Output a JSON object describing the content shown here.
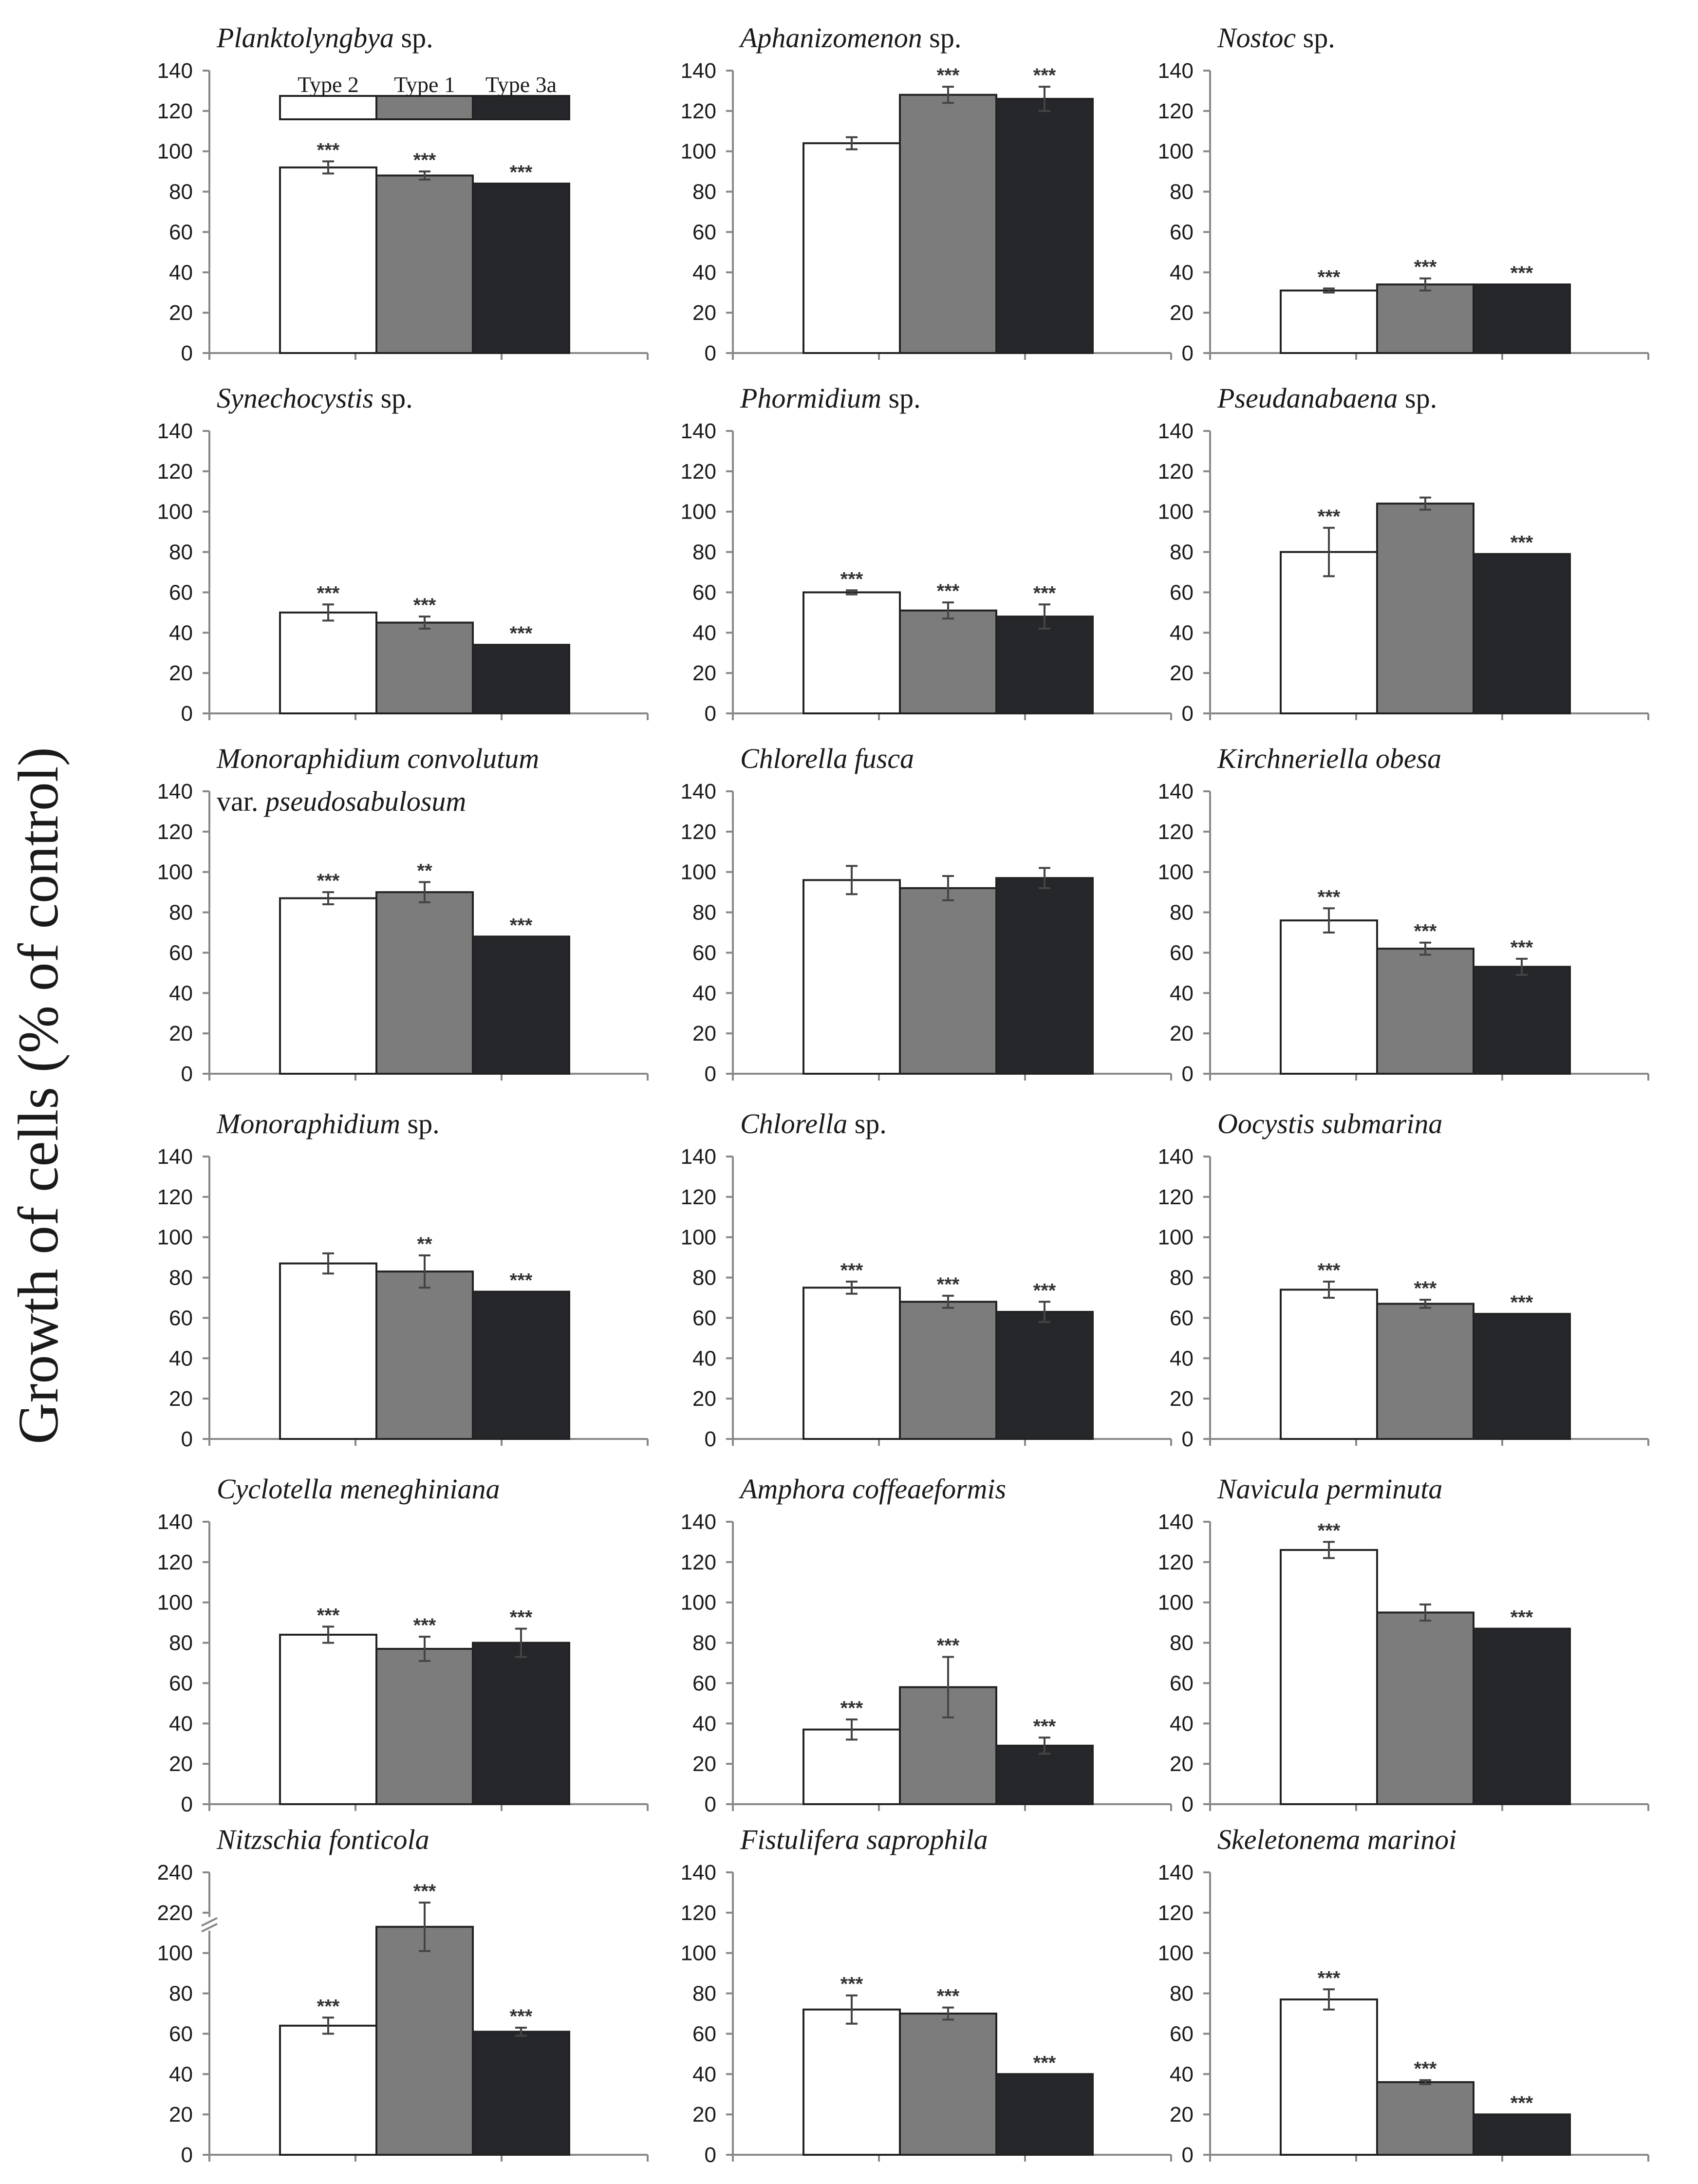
{
  "figure": {
    "ylabel": "Growth of cells (% of control)",
    "colors": {
      "Type 2": "#ffffff",
      "Type 1": "#7c7c7c",
      "Type 3a": "#26272b",
      "axis": "#888888",
      "text": "#1a1a1a"
    },
    "legend": [
      "Type 2",
      "Type 1",
      "Type 3a"
    ]
  },
  "chart_data": [
    {
      "type": "bar",
      "title": [
        {
          "text": "Planktolyngbya",
          "italic": true
        },
        {
          "text": " sp.",
          "italic": false
        }
      ],
      "title2": null,
      "categories": [
        "Type 2",
        "Type 1",
        "Type 3a"
      ],
      "values": [
        92,
        88,
        84
      ],
      "errors": [
        3,
        2,
        0
      ],
      "significance": [
        "***",
        "***",
        "***"
      ],
      "ylim": [
        0,
        140
      ],
      "yticks": [
        0,
        20,
        40,
        60,
        80,
        100,
        120,
        140
      ],
      "show_legend": true
    },
    {
      "type": "bar",
      "title": [
        {
          "text": "Aphanizomenon",
          "italic": true
        },
        {
          "text": " sp.",
          "italic": false
        }
      ],
      "title2": null,
      "categories": [
        "Type 2",
        "Type 1",
        "Type 3a"
      ],
      "values": [
        104,
        128,
        126
      ],
      "errors": [
        3,
        4,
        6
      ],
      "significance": [
        "",
        "***",
        "***"
      ],
      "ylim": [
        0,
        140
      ],
      "yticks": [
        0,
        20,
        40,
        60,
        80,
        100,
        120,
        140
      ]
    },
    {
      "type": "bar",
      "title": [
        {
          "text": "Nostoc",
          "italic": true
        },
        {
          "text": " sp.",
          "italic": false
        }
      ],
      "title2": null,
      "categories": [
        "Type 2",
        "Type 1",
        "Type 3a"
      ],
      "values": [
        31,
        34,
        34
      ],
      "errors": [
        1,
        3,
        0
      ],
      "significance": [
        "***",
        "***",
        "***"
      ],
      "ylim": [
        0,
        140
      ],
      "yticks": [
        0,
        20,
        40,
        60,
        80,
        100,
        120,
        140
      ]
    },
    {
      "type": "bar",
      "title": [
        {
          "text": "Synechocystis",
          "italic": true
        },
        {
          "text": " sp.",
          "italic": false
        }
      ],
      "title2": null,
      "categories": [
        "Type 2",
        "Type 1",
        "Type 3a"
      ],
      "values": [
        50,
        45,
        34
      ],
      "errors": [
        4,
        3,
        0
      ],
      "significance": [
        "***",
        "***",
        "***"
      ],
      "ylim": [
        0,
        140
      ],
      "yticks": [
        0,
        20,
        40,
        60,
        80,
        100,
        120,
        140
      ]
    },
    {
      "type": "bar",
      "title": [
        {
          "text": "Phormidium",
          "italic": true
        },
        {
          "text": " sp.",
          "italic": false
        }
      ],
      "title2": null,
      "categories": [
        "Type 2",
        "Type 1",
        "Type 3a"
      ],
      "values": [
        60,
        51,
        48
      ],
      "errors": [
        1,
        4,
        6
      ],
      "significance": [
        "***",
        "***",
        "***"
      ],
      "ylim": [
        0,
        140
      ],
      "yticks": [
        0,
        20,
        40,
        60,
        80,
        100,
        120,
        140
      ]
    },
    {
      "type": "bar",
      "title": [
        {
          "text": "Pseudanabaena",
          "italic": true
        },
        {
          "text": " sp.",
          "italic": false
        }
      ],
      "title2": null,
      "categories": [
        "Type 2",
        "Type 1",
        "Type 3a"
      ],
      "values": [
        80,
        104,
        79
      ],
      "errors": [
        12,
        3,
        0
      ],
      "significance": [
        "***",
        "",
        "***"
      ],
      "ylim": [
        0,
        140
      ],
      "yticks": [
        0,
        20,
        40,
        60,
        80,
        100,
        120,
        140
      ]
    },
    {
      "type": "bar",
      "title": [
        {
          "text": "Monoraphidium convolutum",
          "italic": true
        }
      ],
      "title2": [
        {
          "text": "var. ",
          "italic": false
        },
        {
          "text": "pseudosabulosum",
          "italic": true
        }
      ],
      "categories": [
        "Type 2",
        "Type 1",
        "Type 3a"
      ],
      "values": [
        87,
        90,
        68
      ],
      "errors": [
        3,
        5,
        0
      ],
      "significance": [
        "***",
        "**",
        "***"
      ],
      "ylim": [
        0,
        140
      ],
      "yticks": [
        0,
        20,
        40,
        60,
        80,
        100,
        120,
        140
      ]
    },
    {
      "type": "bar",
      "title": [
        {
          "text": "Chlorella fusca",
          "italic": true
        }
      ],
      "title2": null,
      "categories": [
        "Type 2",
        "Type 1",
        "Type 3a"
      ],
      "values": [
        96,
        92,
        97
      ],
      "errors": [
        7,
        6,
        5
      ],
      "significance": [
        "",
        "",
        ""
      ],
      "ylim": [
        0,
        140
      ],
      "yticks": [
        0,
        20,
        40,
        60,
        80,
        100,
        120,
        140
      ]
    },
    {
      "type": "bar",
      "title": [
        {
          "text": "Kirchneriella obesa",
          "italic": true
        }
      ],
      "title2": null,
      "categories": [
        "Type 2",
        "Type 1",
        "Type 3a"
      ],
      "values": [
        76,
        62,
        53
      ],
      "errors": [
        6,
        3,
        4
      ],
      "significance": [
        "***",
        "***",
        "***"
      ],
      "ylim": [
        0,
        140
      ],
      "yticks": [
        0,
        20,
        40,
        60,
        80,
        100,
        120,
        140
      ]
    },
    {
      "type": "bar",
      "title": [
        {
          "text": "Monoraphidium",
          "italic": true
        },
        {
          "text": " sp.",
          "italic": false
        }
      ],
      "title2": null,
      "categories": [
        "Type 2",
        "Type 1",
        "Type 3a"
      ],
      "values": [
        87,
        83,
        73
      ],
      "errors": [
        5,
        8,
        0
      ],
      "significance": [
        "",
        "**",
        "***"
      ],
      "ylim": [
        0,
        140
      ],
      "yticks": [
        0,
        20,
        40,
        60,
        80,
        100,
        120,
        140
      ]
    },
    {
      "type": "bar",
      "title": [
        {
          "text": "Chlorella",
          "italic": true
        },
        {
          "text": " sp.",
          "italic": false
        }
      ],
      "title2": null,
      "categories": [
        "Type 2",
        "Type 1",
        "Type 3a"
      ],
      "values": [
        75,
        68,
        63
      ],
      "errors": [
        3,
        3,
        5
      ],
      "significance": [
        "***",
        "***",
        "***"
      ],
      "ylim": [
        0,
        140
      ],
      "yticks": [
        0,
        20,
        40,
        60,
        80,
        100,
        120,
        140
      ]
    },
    {
      "type": "bar",
      "title": [
        {
          "text": "Oocystis submarina",
          "italic": true
        }
      ],
      "title2": null,
      "categories": [
        "Type 2",
        "Type 1",
        "Type 3a"
      ],
      "values": [
        74,
        67,
        62
      ],
      "errors": [
        4,
        2,
        0
      ],
      "significance": [
        "***",
        "***",
        "***"
      ],
      "ylim": [
        0,
        140
      ],
      "yticks": [
        0,
        20,
        40,
        60,
        80,
        100,
        120,
        140
      ]
    },
    {
      "type": "bar",
      "title": [
        {
          "text": "Cyclotella meneghiniana",
          "italic": true
        }
      ],
      "title2": null,
      "categories": [
        "Type 2",
        "Type 1",
        "Type 3a"
      ],
      "values": [
        84,
        77,
        80
      ],
      "errors": [
        4,
        6,
        7
      ],
      "significance": [
        "***",
        "***",
        "***"
      ],
      "ylim": [
        0,
        140
      ],
      "yticks": [
        0,
        20,
        40,
        60,
        80,
        100,
        120,
        140
      ]
    },
    {
      "type": "bar",
      "title": [
        {
          "text": "Amphora coffeaeformis",
          "italic": true
        }
      ],
      "title2": null,
      "categories": [
        "Type 2",
        "Type 1",
        "Type 3a"
      ],
      "values": [
        37,
        58,
        29
      ],
      "errors": [
        5,
        15,
        4
      ],
      "significance": [
        "***",
        "***",
        "***"
      ],
      "ylim": [
        0,
        140
      ],
      "yticks": [
        0,
        20,
        40,
        60,
        80,
        100,
        120,
        140
      ]
    },
    {
      "type": "bar",
      "title": [
        {
          "text": "Navicula perminuta",
          "italic": true
        }
      ],
      "title2": null,
      "categories": [
        "Type 2",
        "Type 1",
        "Type 3a"
      ],
      "values": [
        126,
        95,
        87
      ],
      "errors": [
        4,
        4,
        0
      ],
      "significance": [
        "***",
        "",
        "***"
      ],
      "ylim": [
        0,
        140
      ],
      "yticks": [
        0,
        20,
        40,
        60,
        80,
        100,
        120,
        140
      ]
    },
    {
      "type": "bar",
      "title": [
        {
          "text": "Nitzschia fonticola",
          "italic": true
        }
      ],
      "title2": null,
      "categories": [
        "Type 2",
        "Type 1",
        "Type 3a"
      ],
      "values": [
        64,
        213,
        61
      ],
      "errors": [
        4,
        12,
        2
      ],
      "significance": [
        "***",
        "***",
        "***"
      ],
      "ylim": [
        0,
        240
      ],
      "yticks": [
        0,
        20,
        40,
        60,
        80,
        100,
        220,
        240
      ],
      "axis_break": {
        "from": 100,
        "to": 200
      }
    },
    {
      "type": "bar",
      "title": [
        {
          "text": "Fistulifera saprophila",
          "italic": true
        }
      ],
      "title2": null,
      "categories": [
        "Type 2",
        "Type 1",
        "Type 3a"
      ],
      "values": [
        72,
        70,
        40
      ],
      "errors": [
        7,
        3,
        0
      ],
      "significance": [
        "***",
        "***",
        "***"
      ],
      "ylim": [
        0,
        140
      ],
      "yticks": [
        0,
        20,
        40,
        60,
        80,
        100,
        120,
        140
      ]
    },
    {
      "type": "bar",
      "title": [
        {
          "text": "Skeletonema marinoi",
          "italic": true
        }
      ],
      "title2": null,
      "categories": [
        "Type 2",
        "Type 1",
        "Type 3a"
      ],
      "values": [
        77,
        36,
        20
      ],
      "errors": [
        5,
        1,
        0
      ],
      "significance": [
        "***",
        "***",
        "***"
      ],
      "ylim": [
        0,
        140
      ],
      "yticks": [
        0,
        20,
        40,
        60,
        80,
        100,
        120,
        140
      ]
    }
  ]
}
